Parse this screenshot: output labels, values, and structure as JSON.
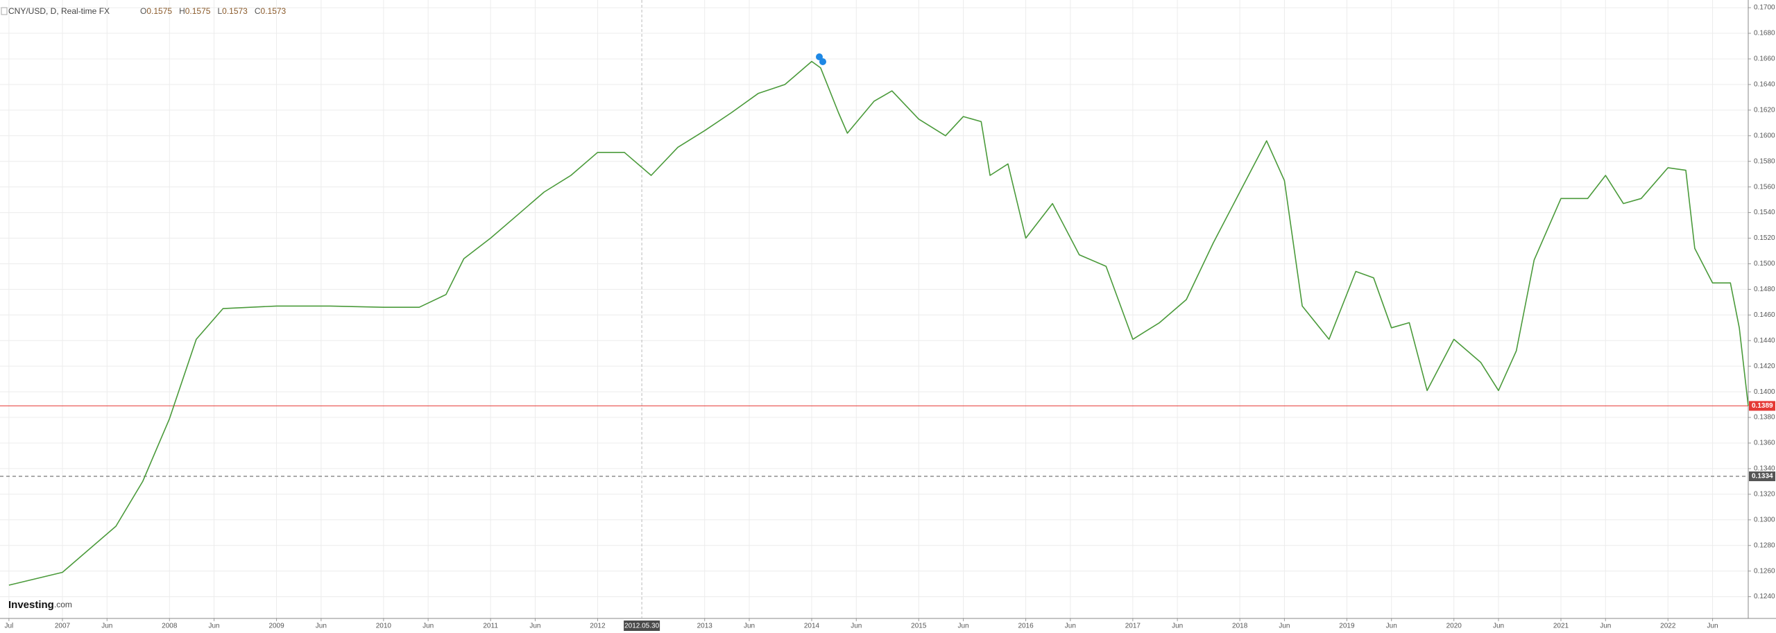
{
  "chart_data": {
    "type": "line",
    "title": "CNY/USD, D, Real-time FX",
    "ohlc": [
      {
        "label": "O",
        "value": 0.1575
      },
      {
        "label": "H",
        "value": 0.1575
      },
      {
        "label": "L",
        "value": 0.1573
      },
      {
        "label": "C",
        "value": 0.1573
      }
    ],
    "x": [
      "2006-07",
      "2007-01",
      "2007-07",
      "2007-10",
      "2008-01",
      "2008-04",
      "2008-07",
      "2009-01",
      "2009-07",
      "2010-01",
      "2010-05",
      "2010-08",
      "2010-10",
      "2011-01",
      "2011-04",
      "2011-07",
      "2011-10",
      "2012-01",
      "2012-04",
      "2012-07",
      "2012-10",
      "2013-01",
      "2013-04",
      "2013-07",
      "2013-10",
      "2014-01",
      "2014-02",
      "2014-04",
      "2014-05",
      "2014-08",
      "2014-10",
      "2015-01",
      "2015-04",
      "2015-06",
      "2015-08",
      "2015-09",
      "2015-11",
      "2016-01",
      "2016-04",
      "2016-07",
      "2016-10",
      "2017-01",
      "2017-04",
      "2017-07",
      "2017-10",
      "2018-01",
      "2018-04",
      "2018-06",
      "2018-08",
      "2018-11",
      "2019-02",
      "2019-04",
      "2019-06",
      "2019-08",
      "2019-10",
      "2020-01",
      "2020-04",
      "2020-06",
      "2020-08",
      "2020-10",
      "2021-01",
      "2021-04",
      "2021-06",
      "2021-08",
      "2021-10",
      "2022-01",
      "2022-03",
      "2022-04",
      "2022-06",
      "2022-08",
      "2022-09",
      "2022-10"
    ],
    "values": [
      0.1249,
      0.1259,
      0.1295,
      0.133,
      0.1379,
      0.1441,
      0.1465,
      0.1467,
      0.1467,
      0.1466,
      0.1466,
      0.1476,
      0.1504,
      0.152,
      0.1538,
      0.1556,
      0.1569,
      0.1587,
      0.1587,
      0.1569,
      0.1591,
      0.1604,
      0.1618,
      0.1633,
      0.164,
      0.1658,
      0.1653,
      0.1618,
      0.1602,
      0.1627,
      0.1635,
      0.1613,
      0.16,
      0.1615,
      0.1611,
      0.1569,
      0.1578,
      0.152,
      0.1547,
      0.1507,
      0.1498,
      0.1441,
      0.1454,
      0.1472,
      0.1516,
      0.1556,
      0.1596,
      0.1565,
      0.1467,
      0.1441,
      0.1494,
      0.1489,
      0.145,
      0.1454,
      0.1401,
      0.1441,
      0.1423,
      0.1401,
      0.1432,
      0.1503,
      0.1551,
      0.1551,
      0.1569,
      0.1547,
      0.1551,
      0.1575,
      0.1573,
      0.1512,
      0.1485,
      0.1485,
      0.145,
      0.1389
    ],
    "color": "#4a9a3a",
    "xlim": [
      "2006-06",
      "2022-10"
    ],
    "ylim": [
      0.1223,
      0.1706
    ],
    "yticks": [
      {
        "value": 0.124,
        "label": "0.1240"
      },
      {
        "value": 0.126,
        "label": "0.1260"
      },
      {
        "value": 0.128,
        "label": "0.1280"
      },
      {
        "value": 0.13,
        "label": "0.1300"
      },
      {
        "value": 0.132,
        "label": "0.1320"
      },
      {
        "value": 0.134,
        "label": "0.1340"
      },
      {
        "value": 0.136,
        "label": "0.1360"
      },
      {
        "value": 0.138,
        "label": "0.1380"
      },
      {
        "value": 0.14,
        "label": "0.1400"
      },
      {
        "value": 0.142,
        "label": "0.1420"
      },
      {
        "value": 0.144,
        "label": "0.1440"
      },
      {
        "value": 0.146,
        "label": "0.1460"
      },
      {
        "value": 0.148,
        "label": "0.1480"
      },
      {
        "value": 0.15,
        "label": "0.1500"
      },
      {
        "value": 0.152,
        "label": "0.1520"
      },
      {
        "value": 0.154,
        "label": "0.1540"
      },
      {
        "value": 0.156,
        "label": "0.1560"
      },
      {
        "value": 0.158,
        "label": "0.1580"
      },
      {
        "value": 0.16,
        "label": "0.1600"
      },
      {
        "value": 0.162,
        "label": "0.1620"
      },
      {
        "value": 0.164,
        "label": "0.1640"
      },
      {
        "value": 0.166,
        "label": "0.1660"
      },
      {
        "value": 0.168,
        "label": "0.1680"
      },
      {
        "value": 0.17,
        "label": "0.1700"
      }
    ],
    "xticks": [
      {
        "value": "2006-07",
        "label": "Jul"
      },
      {
        "value": "2007-01",
        "label": "2007"
      },
      {
        "value": "2007-06",
        "label": "Jun"
      },
      {
        "value": "2008-01",
        "label": "2008"
      },
      {
        "value": "2008-06",
        "label": "Jun"
      },
      {
        "value": "2009-01",
        "label": "2009"
      },
      {
        "value": "2009-06",
        "label": "Jun"
      },
      {
        "value": "2010-01",
        "label": "2010"
      },
      {
        "value": "2010-06",
        "label": "Jun"
      },
      {
        "value": "2011-01",
        "label": "2011"
      },
      {
        "value": "2011-06",
        "label": "Jun"
      },
      {
        "value": "2012-01",
        "label": "2012"
      },
      {
        "value": "2013-01",
        "label": "2013"
      },
      {
        "value": "2013-06",
        "label": "Jun"
      },
      {
        "value": "2014-01",
        "label": "2014"
      },
      {
        "value": "2014-06",
        "label": "Jun"
      },
      {
        "value": "2015-01",
        "label": "2015"
      },
      {
        "value": "2015-06",
        "label": "Jun"
      },
      {
        "value": "2016-01",
        "label": "2016"
      },
      {
        "value": "2016-06",
        "label": "Jun"
      },
      {
        "value": "2017-01",
        "label": "2017"
      },
      {
        "value": "2017-06",
        "label": "Jun"
      },
      {
        "value": "2018-01",
        "label": "2018"
      },
      {
        "value": "2018-06",
        "label": "Jun"
      },
      {
        "value": "2019-01",
        "label": "2019"
      },
      {
        "value": "2019-06",
        "label": "Jun"
      },
      {
        "value": "2020-01",
        "label": "2020"
      },
      {
        "value": "2020-06",
        "label": "Jun"
      },
      {
        "value": "2021-01",
        "label": "2021"
      },
      {
        "value": "2021-06",
        "label": "Jun"
      },
      {
        "value": "2022-01",
        "label": "2022"
      },
      {
        "value": "2022-06",
        "label": "Jun"
      }
    ],
    "grid": true,
    "price_lines": [
      {
        "value": 0.1389,
        "color": "#e53935",
        "dashed": false
      },
      {
        "value": 0.1334,
        "color": "#555555",
        "dashed": true
      }
    ],
    "crosshair": {
      "x": "2012-05-30",
      "label": "2012.05.30"
    },
    "watermark": [
      "Investing",
      ".com"
    ]
  }
}
